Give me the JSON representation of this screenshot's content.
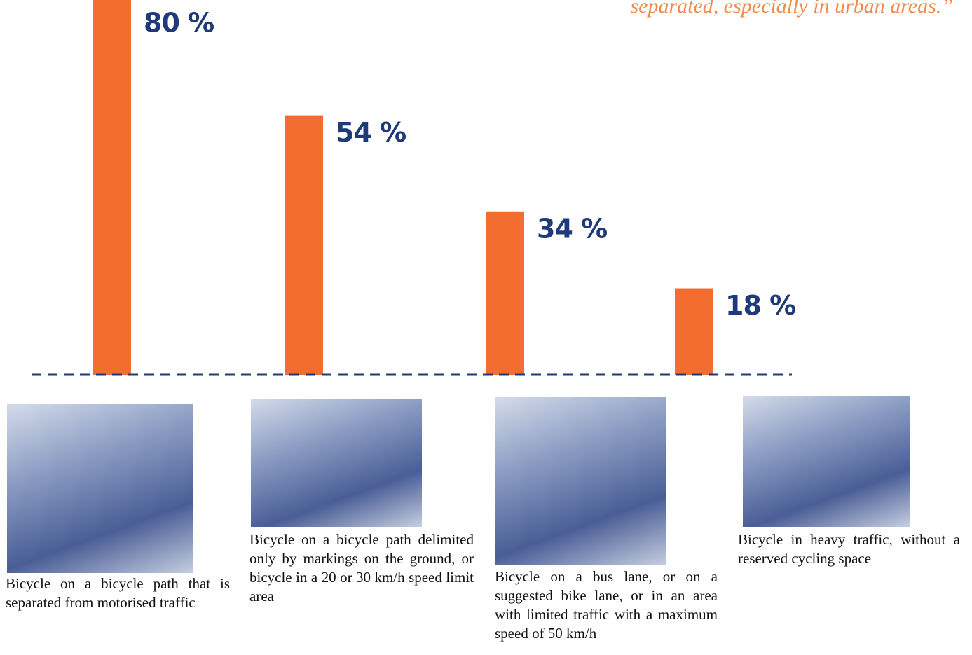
{
  "chart_data": {
    "type": "bar",
    "annotation": "separated, especially in urban areas.”",
    "categories": [
      "Bicycle on a bicycle path that is separated from motorised traffic",
      "Bicycle on a bicycle path delimited only by markings on the ground, or bicycle in a 20 or 30 km/h speed limit area",
      "Bicycle on a bus lane, or on a suggested bike lane, or in an area with limited traffic with a maximum speed of 50 km/h",
      "Bicycle in heavy traffic, without a reserved cycling space"
    ],
    "values": [
      80,
      54,
      34,
      18
    ],
    "value_labels": [
      "80 %",
      "54 %",
      "34 %",
      "18 %"
    ],
    "color": "#f26d2f",
    "ylim": [
      0,
      78
    ]
  }
}
